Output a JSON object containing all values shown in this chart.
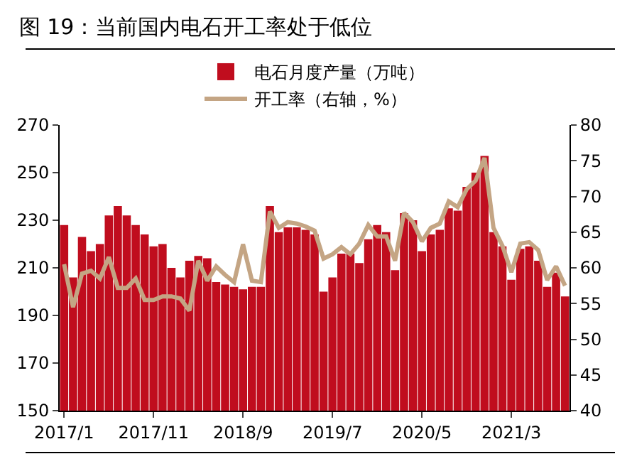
{
  "chart_data": {
    "type": "bar",
    "title": "图 19：当前国内电石开工率处于低位",
    "categories": [
      "2017/1",
      null,
      null,
      null,
      null,
      null,
      null,
      null,
      null,
      null,
      "2017/11",
      null,
      null,
      null,
      null,
      null,
      null,
      null,
      null,
      null,
      "2018/9",
      null,
      null,
      null,
      null,
      null,
      null,
      null,
      null,
      null,
      "2019/7",
      null,
      null,
      null,
      null,
      null,
      null,
      null,
      null,
      null,
      "2020/5",
      null,
      null,
      null,
      null,
      null,
      null,
      null,
      null,
      null,
      "2021/3",
      null,
      null,
      null,
      null,
      null,
      null
    ],
    "series": [
      {
        "name": "电石月度产量（万吨）",
        "color": "#c00d1e",
        "values": [
          228,
          206,
          223,
          217,
          220,
          232,
          236,
          232,
          228,
          224,
          219,
          220,
          210,
          206,
          213,
          215,
          214,
          204,
          203,
          202,
          201,
          202,
          202,
          236,
          225,
          227,
          227,
          226,
          224,
          200,
          206,
          216,
          216,
          212,
          222,
          228,
          225,
          209,
          233,
          230,
          217,
          224,
          226,
          235,
          234,
          244,
          250,
          257,
          225,
          219,
          205,
          218,
          219,
          213,
          202,
          208,
          198
        ]
      },
      {
        "name": "开工率（右轴，%）",
        "type": "line",
        "axis": "y2",
        "color": "#c4a584",
        "values": [
          60.5,
          54.5,
          59.2,
          59.6,
          58.5,
          61.5,
          57.2,
          57.2,
          58.5,
          55.5,
          55.5,
          56,
          56,
          55.7,
          54,
          61,
          58.2,
          60.2,
          59,
          58,
          63.3,
          58.2,
          58,
          67.9,
          65.6,
          66.4,
          66.2,
          65.8,
          65.2,
          61.3,
          61.9,
          62.9,
          61.9,
          63.4,
          66,
          64.4,
          64.4,
          61,
          67.7,
          66.4,
          63.7,
          65.6,
          66.2,
          69.3,
          68.5,
          71,
          72.2,
          75.4,
          65.6,
          63.1,
          59.4,
          63.4,
          63.6,
          62.5,
          58.3,
          60.2,
          57.5
        ]
      }
    ],
    "ylim": [
      150,
      270
    ],
    "yticks": [
      150,
      170,
      190,
      210,
      230,
      250,
      270
    ],
    "y2lim": [
      40,
      80
    ],
    "y2ticks": [
      40,
      45,
      50,
      55,
      60,
      65,
      70,
      75,
      80
    ],
    "grid": false,
    "legend": "top",
    "marker": "none",
    "line_style": "solid"
  }
}
